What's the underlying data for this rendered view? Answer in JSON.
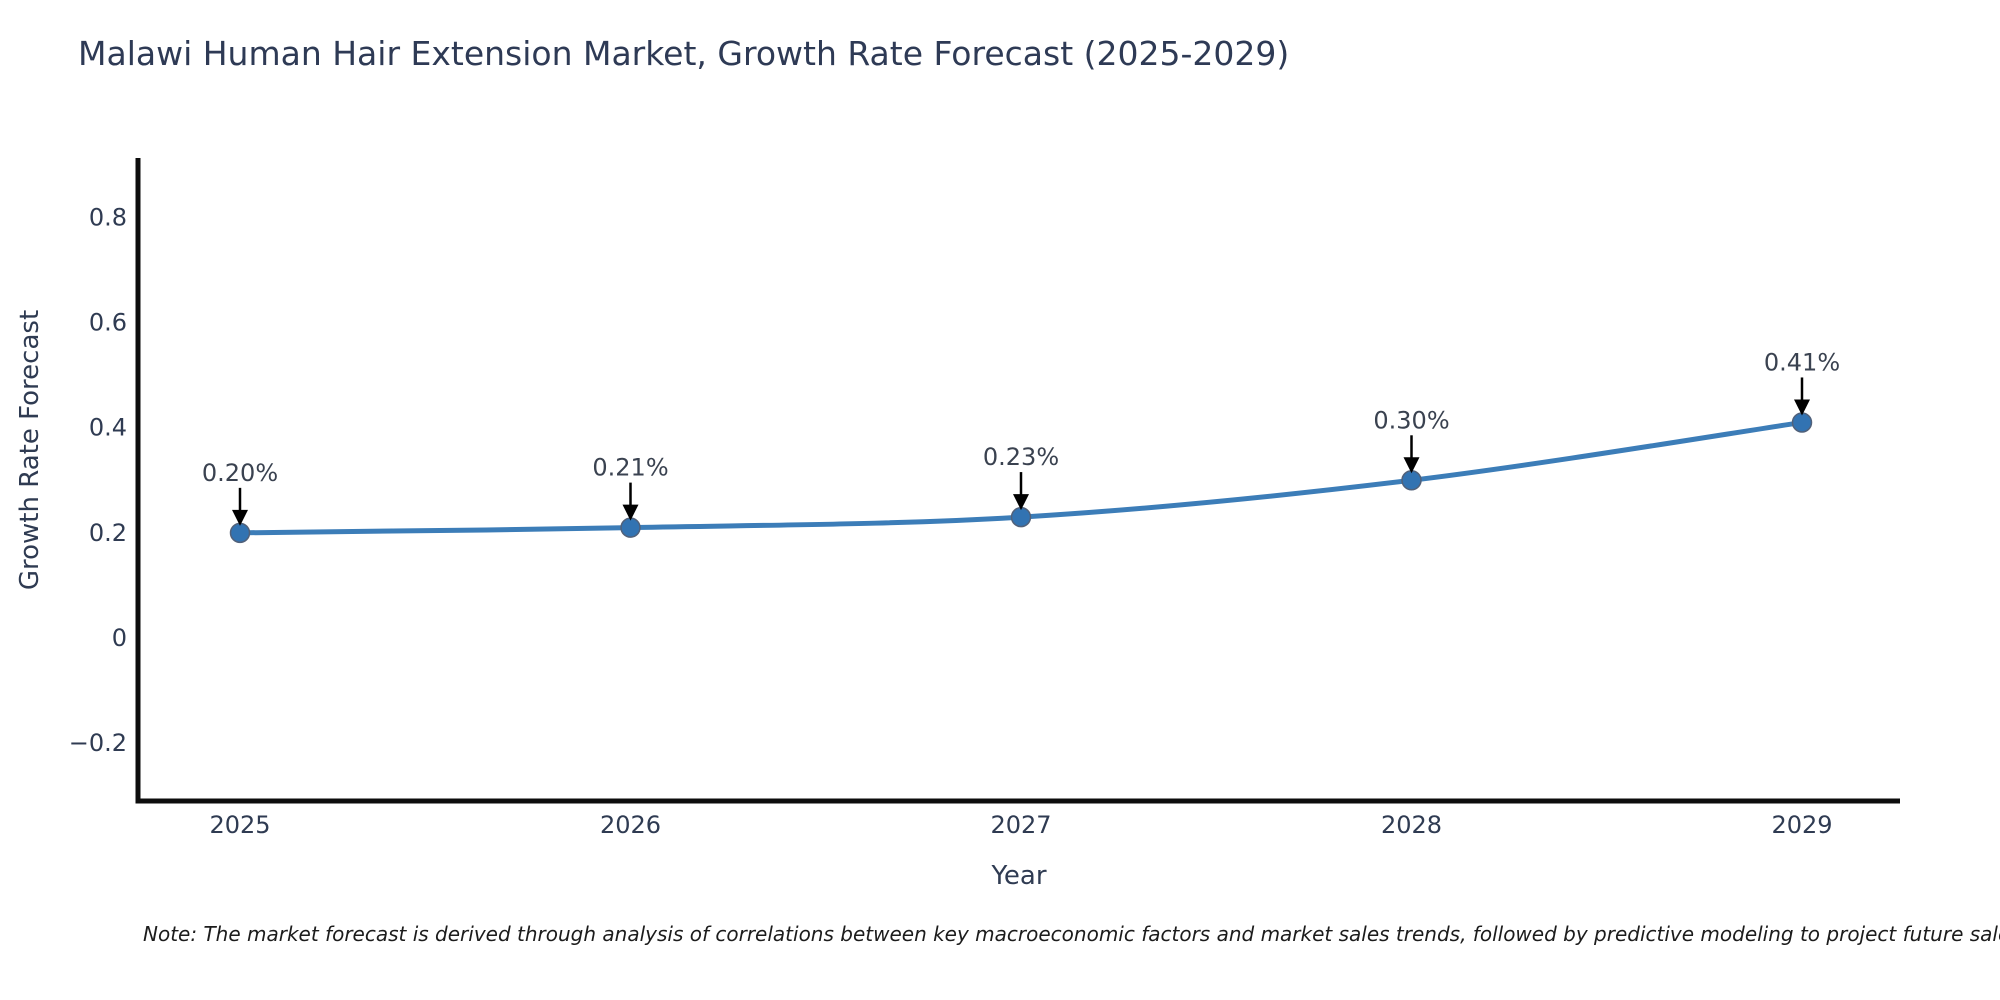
{
  "note": "Note: The market forecast is derived through analysis of correlations between key macroeconomic factors and market sales trends, followed by predictive modeling to project future sales.",
  "chart_data": {
    "type": "line",
    "title": "Malawi Human Hair Extension Market, Growth Rate Forecast (2025-2029)",
    "xlabel": "Year",
    "ylabel": "Growth Rate Forecast",
    "categories": [
      "2025",
      "2026",
      "2027",
      "2028",
      "2029"
    ],
    "series": [
      {
        "name": "Growth Rate Forecast",
        "values": [
          0.2,
          0.21,
          0.23,
          0.3,
          0.41
        ],
        "point_labels": [
          "0.20%",
          "0.21%",
          "0.23%",
          "0.30%",
          "0.41%"
        ]
      }
    ],
    "ytick_values": [
      0.8,
      0.6,
      0.4,
      0.2,
      0,
      -0.2
    ],
    "ytick_labels": [
      "0.8",
      "0.6",
      "0.4",
      "0.2",
      "0",
      "−0.2"
    ],
    "ylim": [
      -0.32,
      0.91
    ],
    "grid": false,
    "legend_position": "none",
    "annotation_style": "downward-black-arrow",
    "colors": {
      "line": "#3c7db8",
      "marker_fill": "#3273b2",
      "marker_edge": "#51617a",
      "axis": "#0d0d0d",
      "tick_text": "#2f3b52",
      "annotation_text": "#3a4250",
      "arrow": "#000000",
      "title_text": "#2e3a55"
    }
  }
}
